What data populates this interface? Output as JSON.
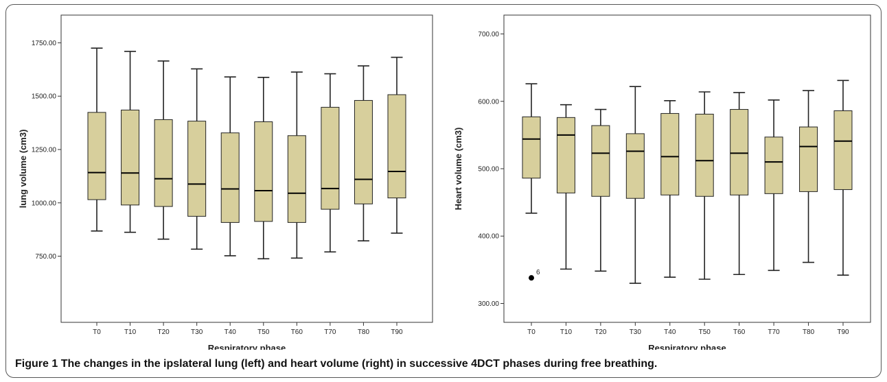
{
  "caption": {
    "label": "Figure 1",
    "text": "The changes in the ipslateral lung (left) and heart volume (right) in successive 4DCT phases during free breathing."
  },
  "colors": {
    "box_fill": "#d7cf9c",
    "box_stroke": "#222222",
    "outlier": "#000000"
  },
  "chart_data": [
    {
      "type": "boxplot",
      "xlabel": "Respiratory phase",
      "ylabel": "lung volume (cm3)",
      "categories": [
        "T0",
        "T10",
        "T20",
        "T30",
        "T40",
        "T50",
        "T60",
        "T70",
        "T80",
        "T90"
      ],
      "yticks": [
        750,
        1000,
        1250,
        1500,
        1750
      ],
      "ytick_labels": [
        "750.00",
        "1000.00",
        "1250.00",
        "1500.00",
        "1750.00"
      ],
      "ylim": [
        440,
        1880
      ],
      "boxes": [
        {
          "min": 868,
          "q1": 1015,
          "median": 1142,
          "q3": 1424,
          "max": 1725
        },
        {
          "min": 862,
          "q1": 990,
          "median": 1140,
          "q3": 1435,
          "max": 1710
        },
        {
          "min": 830,
          "q1": 983,
          "median": 1113,
          "q3": 1390,
          "max": 1665
        },
        {
          "min": 783,
          "q1": 937,
          "median": 1088,
          "q3": 1383,
          "max": 1628
        },
        {
          "min": 752,
          "q1": 908,
          "median": 1065,
          "q3": 1328,
          "max": 1590
        },
        {
          "min": 738,
          "q1": 913,
          "median": 1057,
          "q3": 1380,
          "max": 1588
        },
        {
          "min": 741,
          "q1": 908,
          "median": 1045,
          "q3": 1315,
          "max": 1613
        },
        {
          "min": 770,
          "q1": 970,
          "median": 1067,
          "q3": 1448,
          "max": 1605
        },
        {
          "min": 822,
          "q1": 995,
          "median": 1110,
          "q3": 1480,
          "max": 1642
        },
        {
          "min": 858,
          "q1": 1023,
          "median": 1147,
          "q3": 1507,
          "max": 1682
        }
      ],
      "outliers": []
    },
    {
      "type": "boxplot",
      "xlabel": "Respiratory phase",
      "ylabel": "Heart volume (cm3)",
      "categories": [
        "T0",
        "T10",
        "T20",
        "T30",
        "T40",
        "T50",
        "T60",
        "T70",
        "T80",
        "T90"
      ],
      "yticks": [
        300,
        400,
        500,
        600,
        700
      ],
      "ytick_labels": [
        "300.00",
        "400.00",
        "500.00",
        "600.00",
        "700.00"
      ],
      "ylim": [
        272,
        728
      ],
      "boxes": [
        {
          "min": 434,
          "q1": 486,
          "median": 544,
          "q3": 577,
          "max": 626
        },
        {
          "min": 351,
          "q1": 464,
          "median": 550,
          "q3": 576,
          "max": 595
        },
        {
          "min": 348,
          "q1": 459,
          "median": 523,
          "q3": 564,
          "max": 588
        },
        {
          "min": 330,
          "q1": 456,
          "median": 526,
          "q3": 552,
          "max": 622
        },
        {
          "min": 339,
          "q1": 461,
          "median": 518,
          "q3": 582,
          "max": 601
        },
        {
          "min": 336,
          "q1": 459,
          "median": 512,
          "q3": 581,
          "max": 614
        },
        {
          "min": 343,
          "q1": 461,
          "median": 523,
          "q3": 588,
          "max": 613
        },
        {
          "min": 349,
          "q1": 463,
          "median": 510,
          "q3": 547,
          "max": 602
        },
        {
          "min": 361,
          "q1": 466,
          "median": 533,
          "q3": 562,
          "max": 616
        },
        {
          "min": 342,
          "q1": 469,
          "median": 541,
          "q3": 586,
          "max": 631
        }
      ],
      "outliers": [
        {
          "category": "T0",
          "value": 338,
          "label": "6"
        }
      ]
    }
  ]
}
